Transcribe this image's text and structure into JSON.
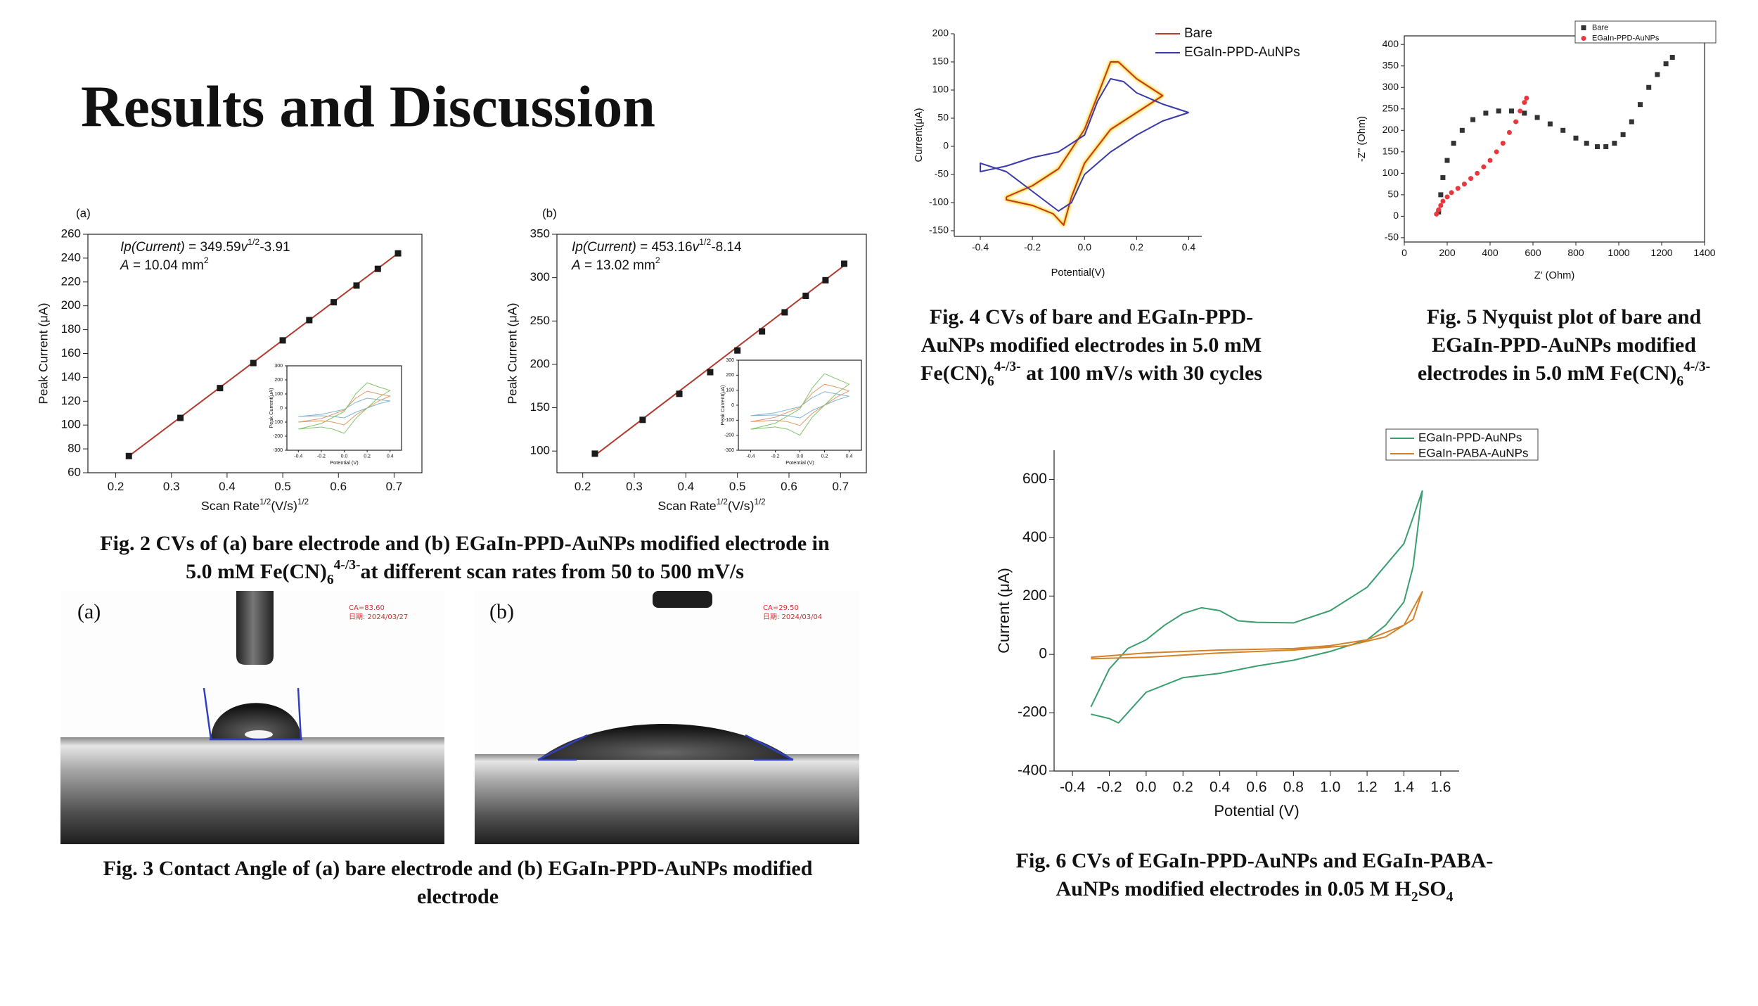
{
  "title": "Results and Discussion",
  "chart_data": [
    {
      "type": "scatter",
      "panel": "(a)",
      "annotation": [
        [
          {
            "text": "Ip(Current)",
            "style": "italic"
          },
          {
            "text": " = 349.59"
          },
          {
            "text": "v",
            "style": "italic"
          },
          {
            "text": "1/2",
            "style": "sup"
          },
          {
            "text": "-3.91"
          }
        ],
        [
          {
            "text": "A",
            "style": "italic"
          },
          {
            "text": " = 10.04 mm"
          },
          {
            "text": "2",
            "style": "sup"
          }
        ]
      ],
      "x": [
        0.2236,
        0.3162,
        0.3873,
        0.4472,
        0.5,
        0.5477,
        0.5916,
        0.6325,
        0.6708,
        0.7071
      ],
      "values": [
        74,
        106,
        131,
        152,
        171,
        188,
        203,
        217,
        231,
        244
      ],
      "color": "#1a1a1a",
      "marker": "square",
      "fit": {
        "x": [
          0.2236,
          0.7071
        ],
        "values": [
          74,
          244
        ],
        "color": "#b03a2e"
      },
      "xlabel": [
        {
          "text": "Scan Rate"
        },
        {
          "text": "1/2",
          "style": "sup"
        },
        {
          "text": "(V/s)"
        },
        {
          "text": "1/2",
          "style": "sup"
        }
      ],
      "ylabel": "Peak Current (μA)",
      "xlim": [
        0.15,
        0.75
      ],
      "xticks": [
        0.2,
        0.3,
        0.4,
        0.5,
        0.6,
        0.7
      ],
      "ylim": [
        60,
        260
      ],
      "yticks": [
        60,
        80,
        100,
        120,
        140,
        160,
        180,
        200,
        220,
        240,
        260
      ],
      "inset": {
        "xlabel": "Potential (V)",
        "ylabel": "Peak Current(μA)",
        "xlim": [
          -0.5,
          0.5
        ],
        "xticks": [
          -0.4,
          -0.2,
          {
            "value": 0,
            "label": "0.0"
          },
          0.2,
          0.4
        ],
        "ylim": [
          -300,
          300
        ],
        "yticks": [
          -300,
          -200,
          -100,
          0,
          100,
          200,
          300
        ],
        "x": [
          -0.4,
          -0.2,
          0,
          0.1,
          0.2,
          0.3,
          0.4,
          0.3,
          0.2,
          0.1,
          0,
          -0.1,
          -0.2,
          -0.4
        ],
        "series": [
          {
            "color": "#7fb3d5",
            "values": [
              -60,
              -45,
              -10,
              40,
              70,
              60,
              50,
              30,
              0,
              -30,
              -70,
              -60,
              -55,
              -60
            ]
          },
          {
            "color": "#e59866",
            "values": [
              -100,
              -75,
              -15,
              70,
              120,
              100,
              85,
              50,
              0,
              -50,
              -120,
              -100,
              -90,
              -100
            ]
          },
          {
            "color": "#82c46c",
            "values": [
              -150,
              -110,
              -25,
              100,
              180,
              150,
              125,
              75,
              0,
              -75,
              -180,
              -150,
              -135,
              -150
            ]
          }
        ]
      }
    },
    {
      "type": "scatter",
      "panel": "(b)",
      "annotation": [
        [
          {
            "text": "Ip(Current)",
            "style": "italic"
          },
          {
            "text": " = 453.16"
          },
          {
            "text": "v",
            "style": "italic"
          },
          {
            "text": "1/2",
            "style": "sup"
          },
          {
            "text": "-8.14"
          }
        ],
        [
          {
            "text": "A",
            "style": "italic"
          },
          {
            "text": " = 13.02 mm"
          },
          {
            "text": "2",
            "style": "sup"
          }
        ]
      ],
      "x": [
        0.2236,
        0.3162,
        0.3873,
        0.4472,
        0.5,
        0.5477,
        0.5916,
        0.6325,
        0.6708,
        0.7071
      ],
      "values": [
        97,
        136,
        166,
        191,
        216,
        238,
        260,
        279,
        297,
        316
      ],
      "color": "#1a1a1a",
      "marker": "square",
      "fit": {
        "x": [
          0.2236,
          0.7071
        ],
        "values": [
          95,
          314
        ],
        "color": "#b03a2e"
      },
      "xlabel": [
        {
          "text": "Scan Rate"
        },
        {
          "text": "1/2",
          "style": "sup"
        },
        {
          "text": "(V/s)"
        },
        {
          "text": "1/2",
          "style": "sup"
        }
      ],
      "ylabel": "Peak Current (μA)",
      "xlim": [
        0.15,
        0.75
      ],
      "xticks": [
        0.2,
        0.3,
        0.4,
        0.5,
        0.6,
        0.7
      ],
      "ylim": [
        75,
        350
      ],
      "yticks": [
        100,
        150,
        200,
        250,
        300,
        350
      ],
      "inset": {
        "xlabel": "Potential (V)",
        "ylabel": "Peak Current(μA)",
        "xlim": [
          -0.5,
          0.5
        ],
        "xticks": [
          -0.4,
          -0.2,
          {
            "value": 0,
            "label": "0.0"
          },
          0.2,
          0.4
        ],
        "ylim": [
          -300,
          300
        ],
        "yticks": [
          -300,
          -200,
          -100,
          0,
          100,
          200,
          300
        ],
        "x": [
          -0.4,
          -0.2,
          0,
          0.1,
          0.2,
          0.3,
          0.4,
          0.3,
          0.2,
          0.1,
          0,
          -0.1,
          -0.2,
          -0.4
        ],
        "series": [
          {
            "color": "#7fb3d5",
            "values": [
              -70,
              -50,
              -10,
              50,
              90,
              75,
              60,
              35,
              0,
              -35,
              -85,
              -70,
              -65,
              -70
            ]
          },
          {
            "color": "#e59866",
            "values": [
              -110,
              -80,
              -15,
              80,
              140,
              120,
              95,
              55,
              0,
              -55,
              -135,
              -110,
              -100,
              -110
            ]
          },
          {
            "color": "#82c46c",
            "values": [
              -160,
              -120,
              -25,
              115,
              210,
              175,
              140,
              80,
              0,
              -80,
              -200,
              -160,
              -145,
              -160
            ]
          }
        ]
      }
    },
    {
      "type": "line",
      "xlabel": "Potential(V)",
      "ylabel": "Current(μA)",
      "xlim": [
        -0.5,
        0.45
      ],
      "xticks": [
        -0.4,
        -0.2,
        {
          "value": 0,
          "label": "0.0"
        },
        0.2,
        0.4
      ],
      "ylim": [
        -160,
        200
      ],
      "yticks": [
        -150,
        -100,
        -50,
        0,
        50,
        100,
        150,
        200
      ],
      "series": [
        {
          "name": "Bare",
          "color": "#c0392b",
          "glow": "#ffd400",
          "x": [
            -0.3,
            -0.2,
            -0.1,
            0,
            0.05,
            0.1,
            0.13,
            0.2,
            0.3,
            0.2,
            0.1,
            0,
            -0.05,
            -0.08,
            -0.12,
            -0.2,
            -0.3,
            -0.3
          ],
          "values": [
            -90,
            -70,
            -40,
            30,
            90,
            150,
            150,
            120,
            90,
            60,
            30,
            -30,
            -90,
            -140,
            -120,
            -105,
            -95,
            -90
          ]
        },
        {
          "name": "EGaIn-PPD-AuNPs",
          "color": "#3a3aa8",
          "x": [
            0.4,
            0.3,
            0.2,
            0.1,
            0,
            -0.05,
            -0.1,
            -0.2,
            -0.3,
            -0.4,
            -0.4,
            -0.3,
            -0.2,
            -0.1,
            0,
            0.05,
            0.1,
            0.15,
            0.2,
            0.3,
            0.4
          ],
          "values": [
            60,
            45,
            20,
            -10,
            -50,
            -100,
            -115,
            -80,
            -45,
            -30,
            -45,
            -35,
            -20,
            -10,
            20,
            80,
            120,
            115,
            95,
            75,
            60
          ]
        }
      ]
    },
    {
      "type": "scatter",
      "xlabel": "Z' (Ohm)",
      "ylabel": "-Z'' (Ohm)",
      "xlim": [
        0,
        1400
      ],
      "xticks": [
        0,
        200,
        400,
        600,
        800,
        1000,
        1200,
        1400
      ],
      "ylim": [
        -60,
        420
      ],
      "yticks": [
        -50,
        0,
        50,
        100,
        150,
        200,
        250,
        300,
        350,
        400
      ],
      "series": [
        {
          "name": "Bare",
          "color": "#333333",
          "marker": "square",
          "x": [
            160,
            170,
            180,
            200,
            230,
            270,
            320,
            380,
            440,
            500,
            560,
            620,
            680,
            740,
            800,
            850,
            900,
            940,
            980,
            1020,
            1060,
            1100,
            1140,
            1180,
            1220,
            1250
          ],
          "values": [
            10,
            50,
            90,
            130,
            170,
            200,
            225,
            240,
            245,
            245,
            240,
            230,
            215,
            200,
            182,
            170,
            162,
            162,
            170,
            190,
            220,
            260,
            300,
            330,
            355,
            370
          ]
        },
        {
          "name": "EGaIn-PPD-AuNPs",
          "color": "#e8383d",
          "marker": "circle",
          "x": [
            150,
            160,
            170,
            180,
            200,
            220,
            250,
            280,
            310,
            340,
            370,
            400,
            430,
            460,
            490,
            520,
            540,
            560,
            570
          ],
          "values": [
            5,
            15,
            25,
            35,
            45,
            55,
            65,
            75,
            88,
            100,
            115,
            130,
            150,
            170,
            195,
            220,
            245,
            265,
            275
          ]
        }
      ]
    },
    {
      "type": "line",
      "xlabel": "Potential (V)",
      "ylabel": "Current (μA)",
      "xlim": [
        -0.5,
        1.7
      ],
      "xticks": [
        -0.4,
        -0.2,
        {
          "value": 0,
          "label": "0.0"
        },
        0.2,
        0.4,
        0.6,
        0.8,
        {
          "value": 1,
          "label": "1.0"
        },
        1.2,
        1.4,
        1.6
      ],
      "ylim": [
        -400,
        700
      ],
      "yticks": [
        -400,
        -200,
        0,
        200,
        400,
        600
      ],
      "series": [
        {
          "name": "EGaIn-PPD-AuNPs",
          "color": "#3a9e6e",
          "x": [
            -0.3,
            -0.2,
            -0.1,
            0,
            0.1,
            0.2,
            0.3,
            0.4,
            0.5,
            0.6,
            0.8,
            1.0,
            1.2,
            1.4,
            1.5,
            1.45,
            1.4,
            1.3,
            1.2,
            1.0,
            0.8,
            0.6,
            0.4,
            0.2,
            0,
            -0.1,
            -0.15,
            -0.2,
            -0.3
          ],
          "values": [
            -180,
            -50,
            20,
            50,
            100,
            140,
            160,
            150,
            115,
            110,
            108,
            150,
            230,
            380,
            560,
            300,
            180,
            100,
            50,
            10,
            -20,
            -40,
            -65,
            -80,
            -130,
            -200,
            -235,
            -220,
            -205
          ]
        },
        {
          "name": "EGaIn-PABA-AuNPs",
          "color": "#d4822a",
          "x": [
            -0.3,
            0,
            0.4,
            0.8,
            1.0,
            1.2,
            1.4,
            1.5,
            1.45,
            1.3,
            1.1,
            0.8,
            0.4,
            0,
            -0.3
          ],
          "values": [
            -10,
            5,
            15,
            20,
            30,
            50,
            100,
            215,
            120,
            60,
            30,
            15,
            5,
            -10,
            -15
          ]
        }
      ]
    }
  ],
  "photos": [
    {
      "label": "(a)",
      "ca": "CA=83.60",
      "date": "日期: 2024/03/27"
    },
    {
      "label": "(b)",
      "ca": "CA=29.50",
      "date": "日期: 2024/03/04"
    }
  ],
  "captions": [
    [
      [
        {
          "text": "Fig. 2 CVs of  (a) bare electrode and (b) EGaIn-PPD-AuNPs modified electrode in"
        }
      ],
      [
        {
          "text": "5.0 mM Fe(CN)"
        },
        {
          "text": "6",
          "style": "sub"
        },
        {
          "text": "4-/3-",
          "style": "sup"
        },
        {
          "text": "at different scan rates from 50 to 500 mV/s"
        }
      ]
    ],
    [
      [
        {
          "text": "Fig. 3 Contact Angle of  (a) bare electrode and (b) EGaIn-PPD-AuNPs modified"
        }
      ],
      [
        {
          "text": "electrode"
        }
      ]
    ],
    [
      [
        {
          "text": "Fig. 4 CVs of  bare and EGaIn-PPD-"
        }
      ],
      [
        {
          "text": "AuNPs modified electrodes in 5.0 mM"
        }
      ],
      [
        {
          "text": "Fe(CN)"
        },
        {
          "text": "6",
          "style": "sub"
        },
        {
          "text": "4-/3-",
          "style": "sup"
        },
        {
          "text": " at 100 mV/s with 30 cycles"
        }
      ]
    ],
    [
      [
        {
          "text": "Fig. 5 Nyquist plot of  bare and"
        }
      ],
      [
        {
          "text": "EGaIn-PPD-AuNPs modified"
        }
      ],
      [
        {
          "text": "electrodes in 5.0 mM Fe(CN)"
        },
        {
          "text": "6",
          "style": "sub"
        },
        {
          "text": "4-/3-",
          "style": "sup"
        }
      ]
    ],
    [
      [
        {
          "text": "Fig. 6 CVs of  EGaIn-PPD-AuNPs and EGaIn-PABA-"
        }
      ],
      [
        {
          "text": "AuNPs modified electrodes in 0.05 M H"
        },
        {
          "text": "2",
          "style": "sub"
        },
        {
          "text": "SO"
        },
        {
          "text": "4",
          "style": "sub"
        }
      ]
    ]
  ]
}
